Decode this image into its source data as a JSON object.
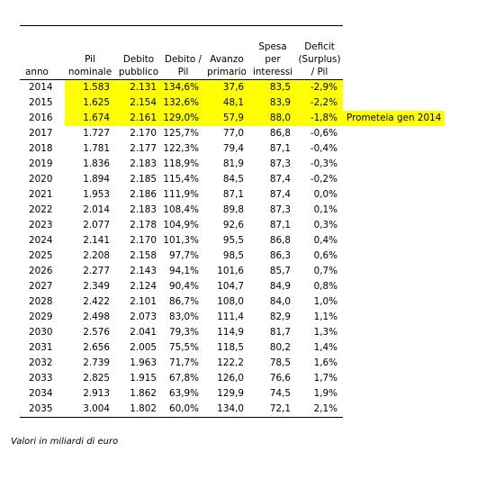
{
  "table": {
    "headers": {
      "anno": "anno",
      "pil": "Pil\nnominale",
      "debito": "Debito\npubblico",
      "rapporto": "Debito /\nPil",
      "avanzo": "Avanzo\nprimario",
      "interessi": "Spesa\nper\ninteressi",
      "deficit": "Deficit\n(Surplus)\n/ Pil"
    },
    "rows": [
      {
        "anno": "2014",
        "pil": "1.583",
        "debito": "2.131",
        "rapporto": "134,6%",
        "avanzo": "37,6",
        "interessi": "83,5",
        "deficit": "-2,9%",
        "note": "",
        "highlight": true
      },
      {
        "anno": "2015",
        "pil": "1.625",
        "debito": "2.154",
        "rapporto": "132,6%",
        "avanzo": "48,1",
        "interessi": "83,9",
        "deficit": "-2,2%",
        "note": "",
        "highlight": true
      },
      {
        "anno": "2016",
        "pil": "1.674",
        "debito": "2.161",
        "rapporto": "129,0%",
        "avanzo": "57,9",
        "interessi": "88,0",
        "deficit": "-1,8%",
        "note": "Prometeia gen 2014",
        "highlight": true
      },
      {
        "anno": "2017",
        "pil": "1.727",
        "debito": "2.170",
        "rapporto": "125,7%",
        "avanzo": "77,0",
        "interessi": "86,8",
        "deficit": "-0,6%",
        "note": "",
        "highlight": false
      },
      {
        "anno": "2018",
        "pil": "1.781",
        "debito": "2.177",
        "rapporto": "122,3%",
        "avanzo": "79,4",
        "interessi": "87,1",
        "deficit": "-0,4%",
        "note": "",
        "highlight": false
      },
      {
        "anno": "2019",
        "pil": "1.836",
        "debito": "2.183",
        "rapporto": "118,9%",
        "avanzo": "81,9",
        "interessi": "87,3",
        "deficit": "-0,3%",
        "note": "",
        "highlight": false
      },
      {
        "anno": "2020",
        "pil": "1.894",
        "debito": "2.185",
        "rapporto": "115,4%",
        "avanzo": "84,5",
        "interessi": "87,4",
        "deficit": "-0,2%",
        "note": "",
        "highlight": false
      },
      {
        "anno": "2021",
        "pil": "1.953",
        "debito": "2.186",
        "rapporto": "111,9%",
        "avanzo": "87,1",
        "interessi": "87,4",
        "deficit": "0,0%",
        "note": "",
        "highlight": false
      },
      {
        "anno": "2022",
        "pil": "2.014",
        "debito": "2.183",
        "rapporto": "108,4%",
        "avanzo": "89,8",
        "interessi": "87,3",
        "deficit": "0,1%",
        "note": "",
        "highlight": false
      },
      {
        "anno": "2023",
        "pil": "2.077",
        "debito": "2.178",
        "rapporto": "104,9%",
        "avanzo": "92,6",
        "interessi": "87,1",
        "deficit": "0,3%",
        "note": "",
        "highlight": false
      },
      {
        "anno": "2024",
        "pil": "2.141",
        "debito": "2.170",
        "rapporto": "101,3%",
        "avanzo": "95,5",
        "interessi": "86,8",
        "deficit": "0,4%",
        "note": "",
        "highlight": false
      },
      {
        "anno": "2025",
        "pil": "2.208",
        "debito": "2.158",
        "rapporto": "97,7%",
        "avanzo": "98,5",
        "interessi": "86,3",
        "deficit": "0,6%",
        "note": "",
        "highlight": false
      },
      {
        "anno": "2026",
        "pil": "2.277",
        "debito": "2.143",
        "rapporto": "94,1%",
        "avanzo": "101,6",
        "interessi": "85,7",
        "deficit": "0,7%",
        "note": "",
        "highlight": false
      },
      {
        "anno": "2027",
        "pil": "2.349",
        "debito": "2.124",
        "rapporto": "90,4%",
        "avanzo": "104,7",
        "interessi": "84,9",
        "deficit": "0,8%",
        "note": "",
        "highlight": false
      },
      {
        "anno": "2028",
        "pil": "2.422",
        "debito": "2.101",
        "rapporto": "86,7%",
        "avanzo": "108,0",
        "interessi": "84,0",
        "deficit": "1,0%",
        "note": "",
        "highlight": false
      },
      {
        "anno": "2029",
        "pil": "2.498",
        "debito": "2.073",
        "rapporto": "83,0%",
        "avanzo": "111,4",
        "interessi": "82,9",
        "deficit": "1,1%",
        "note": "",
        "highlight": false
      },
      {
        "anno": "2030",
        "pil": "2.576",
        "debito": "2.041",
        "rapporto": "79,3%",
        "avanzo": "114,9",
        "interessi": "81,7",
        "deficit": "1,3%",
        "note": "",
        "highlight": false
      },
      {
        "anno": "2031",
        "pil": "2.656",
        "debito": "2.005",
        "rapporto": "75,5%",
        "avanzo": "118,5",
        "interessi": "80,2",
        "deficit": "1,4%",
        "note": "",
        "highlight": false
      },
      {
        "anno": "2032",
        "pil": "2.739",
        "debito": "1.963",
        "rapporto": "71,7%",
        "avanzo": "122,2",
        "interessi": "78,5",
        "deficit": "1,6%",
        "note": "",
        "highlight": false
      },
      {
        "anno": "2033",
        "pil": "2.825",
        "debito": "1.915",
        "rapporto": "67,8%",
        "avanzo": "126,0",
        "interessi": "76,6",
        "deficit": "1,7%",
        "note": "",
        "highlight": false
      },
      {
        "anno": "2034",
        "pil": "2.913",
        "debito": "1.862",
        "rapporto": "63,9%",
        "avanzo": "129,9",
        "interessi": "74,5",
        "deficit": "1,9%",
        "note": "",
        "highlight": false
      },
      {
        "anno": "2035",
        "pil": "3.004",
        "debito": "1.802",
        "rapporto": "60,0%",
        "avanzo": "134,0",
        "interessi": "72,1",
        "deficit": "2,1%",
        "note": "",
        "highlight": false
      }
    ],
    "highlight_color": "#ffff00"
  },
  "footnote": "Valori in miliardi di euro"
}
